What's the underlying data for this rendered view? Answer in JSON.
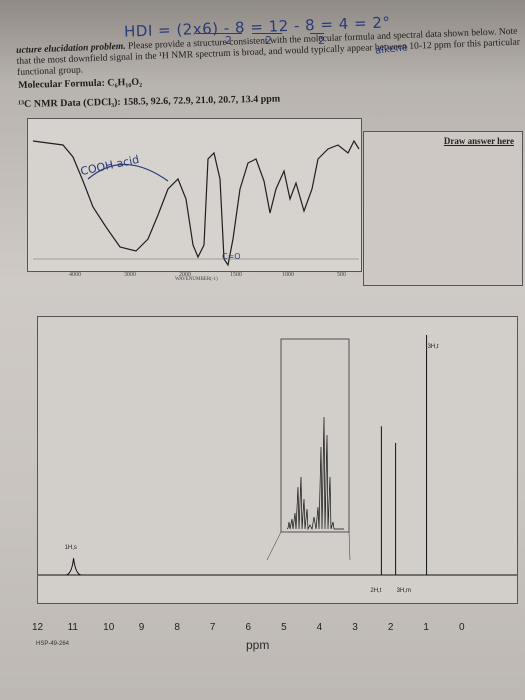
{
  "handwriting": {
    "hdi_equation": "HDI = (2x6) - 8 = 12 - 8 = 4 = 2°",
    "hdi_denominators": [
      "2",
      "2",
      "2"
    ],
    "alkene_note": "alkene",
    "ir_note": "COOH acid",
    "ir_note2": "C=O"
  },
  "worksheet": {
    "instruction_lead": "ucture elucidation problem.",
    "instruction_text": " Please provide a structure consistent with the molecular formula and spectral data shown below. Note that the most downfield signal in the ¹H NMR spectrum is broad, and would typically appear between 10-12 ppm for this particular functional group.",
    "formula_label": "Molecular Formula: C₆H₁₀O₂",
    "c13_label": "¹³C NMR Data (CDCl₃): 158.5, 92.6, 72.9, 21.0, 20.7, 13.4 ppm",
    "answer_label": "Draw answer here"
  },
  "ir_spectrum": {
    "x_ticks": [
      "4000",
      "3000",
      "2000",
      "1500",
      "1000",
      "500"
    ],
    "x_label": "WAVENUMBER(-1)"
  },
  "nmr_spectrum": {
    "x_ticks": [
      "12",
      "11",
      "10",
      "9",
      "8",
      "7",
      "6",
      "5",
      "4",
      "3",
      "2",
      "1",
      "0"
    ],
    "x_label": "ppm",
    "peak_labels": {
      "acid": "1H,s",
      "methyl_right": "3H,t",
      "two_h": "2H,t",
      "three_h_m": "3H,m"
    },
    "code": "HSP-49-264"
  },
  "chart_data": {
    "type": "line",
    "title": "",
    "xlabel": "ppm",
    "ylabel": "",
    "xlim": [
      12,
      0
    ],
    "peaks": [
      {
        "ppm": 11.0,
        "height": 0.07,
        "label": "1H,s"
      },
      {
        "ppm": 2.35,
        "height": 0.62,
        "label": "2H,t"
      },
      {
        "ppm": 1.95,
        "height": 0.55,
        "label": "3H,m"
      },
      {
        "ppm": 1.08,
        "height": 1.0,
        "label": "3H,t"
      }
    ]
  }
}
